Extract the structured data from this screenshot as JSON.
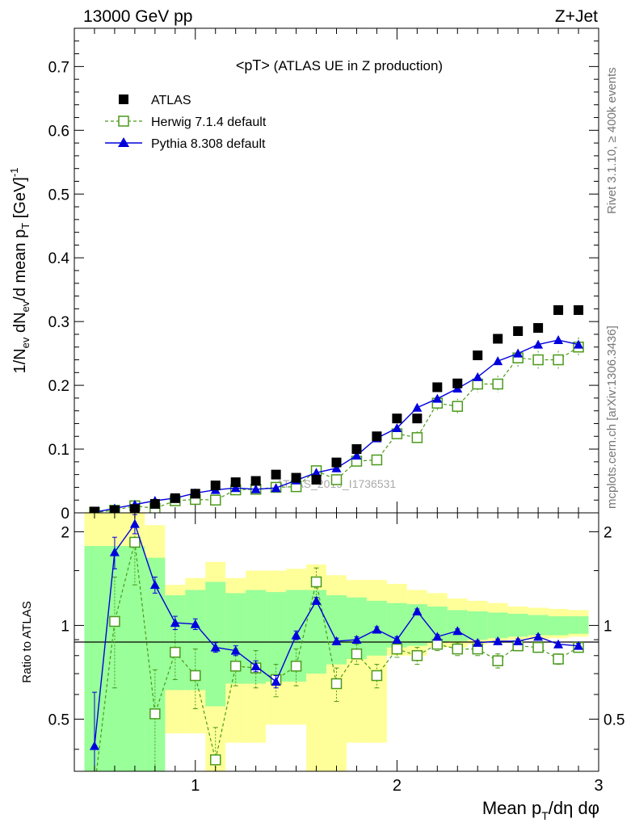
{
  "header": {
    "left": "13000 GeV pp",
    "right": "Z+Jet"
  },
  "side_labels": {
    "rivet": "Rivet 3.1.10, ≥ 400k events",
    "mcplots": "mcplots.cern.ch [arXiv:1306.3436]"
  },
  "chart_data": [
    {
      "type": "scatter",
      "title": "<pT> (ATLAS UE in Z production)",
      "title_main": "<pT>",
      "title_rest": " (ATLAS UE in Z production)",
      "watermark": "ATLAS_2019_I1736531",
      "xlabel_main": "Mean p",
      "xlabel_sub": "T",
      "xlabel_rest": "/dη dφ",
      "ylabel": "1/N_ev dN_ev/d mean p_T [GeV]^-1",
      "ylabel_parts": {
        "a": "1/N",
        "a_sub": "ev",
        "b": " dN",
        "b_sub": "ev",
        "c": "/d mean p",
        "c_sub": "T",
        "d": " [GeV]",
        "d_sup": "-1"
      },
      "xlim": [
        0.4,
        3.0
      ],
      "ylim": [
        0,
        0.76
      ],
      "yticks": [
        "0",
        "0.1",
        "0.2",
        "0.3",
        "0.4",
        "0.5",
        "0.6",
        "0.7"
      ],
      "legend_position": "top-left",
      "x": [
        0.5,
        0.6,
        0.7,
        0.8,
        0.9,
        1.0,
        1.1,
        1.2,
        1.3,
        1.4,
        1.5,
        1.6,
        1.7,
        1.8,
        1.9,
        2.0,
        2.1,
        2.2,
        2.3,
        2.4,
        2.5,
        2.6,
        2.7,
        2.8,
        2.9
      ],
      "series": [
        {
          "name": "ATLAS",
          "color": "#000000",
          "values": [
            0.002,
            0.004,
            0.006,
            0.014,
            0.023,
            0.03,
            0.043,
            0.048,
            0.05,
            0.06,
            0.055,
            0.052,
            0.079,
            0.1,
            0.12,
            0.148,
            0.148,
            0.197,
            0.203,
            0.247,
            0.273,
            0.285,
            0.29,
            0.318,
            0.318
          ]
        },
        {
          "name": "Herwig 7.1.4 default",
          "color": "#4a9a1a",
          "values": [
            0.0006,
            0.004,
            0.011,
            0.007,
            0.019,
            0.021,
            0.02,
            0.036,
            0.037,
            0.04,
            0.041,
            0.066,
            0.052,
            0.081,
            0.083,
            0.124,
            0.118,
            0.172,
            0.167,
            0.202,
            0.202,
            0.243,
            0.24,
            0.24,
            0.26
          ],
          "errors": [
            0.002,
            0.002,
            0.003,
            0.003,
            0.004,
            0.004,
            0.004,
            0.005,
            0.005,
            0.006,
            0.006,
            0.007,
            0.007,
            0.008,
            0.008,
            0.01,
            0.01,
            0.012,
            0.012,
            0.013,
            0.013,
            0.014,
            0.014,
            0.014,
            0.015
          ]
        },
        {
          "name": "Pythia 8.308 default",
          "color": "#0000dd",
          "values": [
            0.001,
            0.007,
            0.013,
            0.019,
            0.023,
            0.031,
            0.036,
            0.039,
            0.037,
            0.039,
            0.051,
            0.063,
            0.07,
            0.09,
            0.117,
            0.133,
            0.165,
            0.179,
            0.195,
            0.213,
            0.238,
            0.25,
            0.264,
            0.271,
            0.264
          ],
          "errors": [
            0.001,
            0.001,
            0.001,
            0.001,
            0.001,
            0.002,
            0.002,
            0.002,
            0.002,
            0.002,
            0.003,
            0.003,
            0.003,
            0.004,
            0.004,
            0.004,
            0.005,
            0.005,
            0.005,
            0.005,
            0.006,
            0.006,
            0.006,
            0.006,
            0.006
          ]
        }
      ]
    },
    {
      "type": "line",
      "ylabel": "Ratio to ATLAS",
      "xlim": [
        0.4,
        3.0
      ],
      "ylim": [
        0.34,
        2.3
      ],
      "ylog": true,
      "yticks": [
        "0.5",
        "1",
        "2"
      ],
      "xticks": [
        "1",
        "2",
        "3"
      ],
      "x": [
        0.5,
        0.6,
        0.7,
        0.8,
        0.9,
        1.0,
        1.1,
        1.2,
        1.3,
        1.4,
        1.5,
        1.6,
        1.7,
        1.8,
        1.9,
        2.0,
        2.1,
        2.2,
        2.3,
        2.4,
        2.5,
        2.6,
        2.7,
        2.8,
        2.9
      ],
      "bands": {
        "edges": [
          0.45,
          0.55,
          0.65,
          0.75,
          0.85,
          0.95,
          1.05,
          1.15,
          1.25,
          1.35,
          1.45,
          1.55,
          1.65,
          1.75,
          1.85,
          1.95,
          2.05,
          2.15,
          2.25,
          2.35,
          2.45,
          2.55,
          2.65,
          2.75,
          2.85,
          2.95
        ],
        "yellow_hi": [
          2.3,
          2.3,
          2.3,
          2.1,
          1.35,
          1.42,
          1.6,
          1.42,
          1.5,
          1.5,
          1.52,
          1.57,
          1.45,
          1.4,
          1.4,
          1.36,
          1.3,
          1.27,
          1.22,
          1.2,
          1.18,
          1.15,
          1.14,
          1.13,
          1.12
        ],
        "yellow_lo": [
          0.34,
          0.34,
          0.34,
          0.34,
          0.45,
          0.45,
          0.34,
          0.42,
          0.42,
          0.48,
          0.48,
          0.34,
          0.34,
          0.42,
          0.42,
          0.8,
          0.8,
          0.85,
          0.85,
          0.87,
          0.88,
          0.9,
          0.9,
          0.91,
          0.92
        ],
        "green_hi": [
          1.8,
          1.8,
          1.8,
          1.65,
          1.25,
          1.3,
          1.38,
          1.27,
          1.3,
          1.28,
          1.3,
          1.3,
          1.25,
          1.23,
          1.2,
          1.18,
          1.17,
          1.15,
          1.12,
          1.11,
          1.1,
          1.09,
          1.08,
          1.07,
          1.07
        ],
        "green_lo": [
          0.34,
          0.34,
          0.34,
          0.34,
          0.62,
          0.62,
          0.55,
          0.65,
          0.65,
          0.66,
          0.66,
          0.7,
          0.75,
          0.78,
          0.8,
          0.85,
          0.86,
          0.88,
          0.89,
          0.9,
          0.91,
          0.92,
          0.93,
          0.93,
          0.94
        ]
      },
      "series": [
        {
          "name": "Herwig 7.1.4 default",
          "color": "#4a9a1a",
          "values": [
            0.3,
            1.03,
            1.85,
            0.52,
            0.82,
            0.69,
            0.37,
            0.74,
            0.73,
            0.67,
            0.74,
            1.38,
            0.65,
            0.81,
            0.69,
            0.84,
            0.8,
            0.87,
            0.84,
            0.84,
            0.77,
            0.86,
            0.85,
            0.78,
            0.85
          ],
          "err_lo": [
            0.0,
            0.4,
            0.5,
            0.2,
            0.15,
            0.15,
            0.1,
            0.1,
            0.1,
            0.08,
            0.1,
            0.15,
            0.08,
            0.06,
            0.06,
            0.05,
            0.05,
            0.04,
            0.04,
            0.04,
            0.04,
            0.03,
            0.03,
            0.03,
            0.03
          ],
          "err_hi": [
            0.0,
            0.4,
            0.5,
            0.2,
            0.15,
            0.15,
            0.1,
            0.1,
            0.1,
            0.08,
            0.1,
            0.15,
            0.08,
            0.06,
            0.06,
            0.05,
            0.05,
            0.04,
            0.04,
            0.04,
            0.04,
            0.03,
            0.03,
            0.03,
            0.03
          ]
        },
        {
          "name": "Pythia 8.308 default",
          "color": "#0000dd",
          "values": [
            0.41,
            1.72,
            2.12,
            1.35,
            1.02,
            1.01,
            0.85,
            0.83,
            0.74,
            0.66,
            0.93,
            1.2,
            0.89,
            0.9,
            0.97,
            0.9,
            1.11,
            0.92,
            0.96,
            0.88,
            0.89,
            0.89,
            0.92,
            0.87,
            0.86
          ],
          "err_lo": [
            0.2,
            0.2,
            0.15,
            0.08,
            0.05,
            0.04,
            0.03,
            0.03,
            0.03,
            0.03,
            0.03,
            0.03,
            0.02,
            0.02,
            0.02,
            0.02,
            0.02,
            0.015,
            0.015,
            0.015,
            0.015,
            0.015,
            0.015,
            0.015,
            0.015
          ],
          "err_hi": [
            0.2,
            0.2,
            0.15,
            0.08,
            0.05,
            0.04,
            0.03,
            0.03,
            0.03,
            0.03,
            0.03,
            0.03,
            0.02,
            0.02,
            0.02,
            0.02,
            0.02,
            0.015,
            0.015,
            0.015,
            0.015,
            0.015,
            0.015,
            0.015,
            0.015
          ]
        }
      ]
    }
  ]
}
